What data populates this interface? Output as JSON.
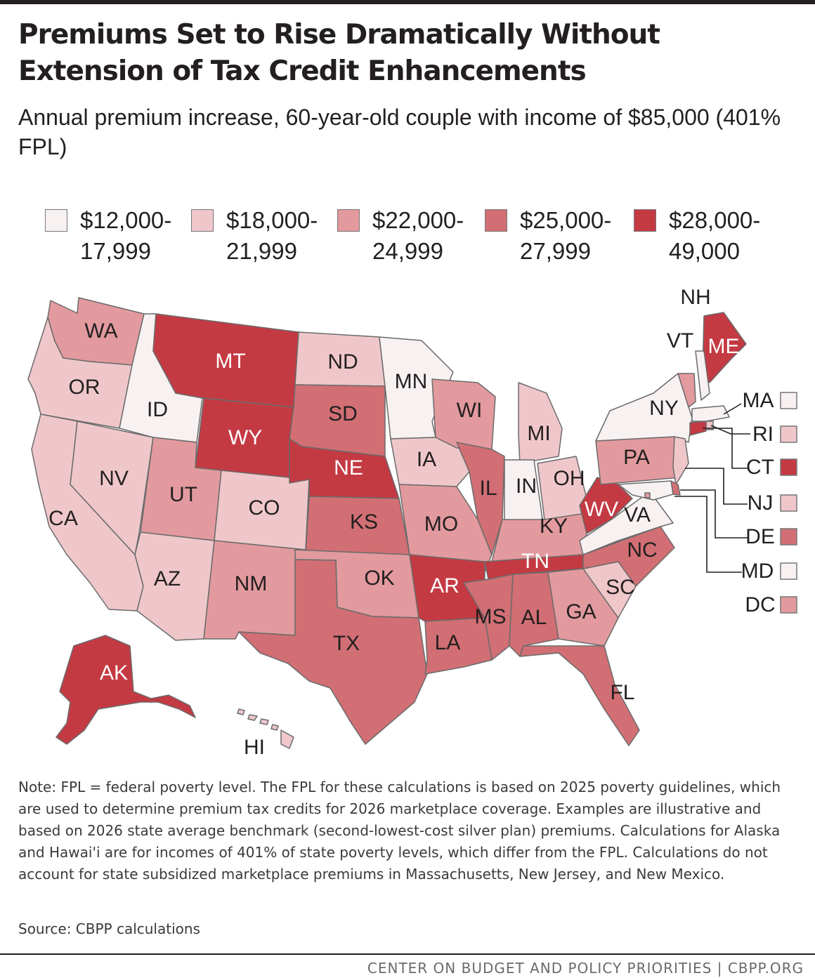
{
  "header": {
    "title": "Premiums Set to Rise Dramatically Without Extension of Tax Credit Enhancements",
    "subtitle": "Annual premium increase, 60-year-old couple with income of $85,000 (401% FPL)"
  },
  "legend": [
    {
      "label_line1": "$12,000-",
      "label_line2": "17,999",
      "color": "#f8f1f1"
    },
    {
      "label_line1": "$18,000-",
      "label_line2": "21,999",
      "color": "#efc7cb"
    },
    {
      "label_line1": "$22,000-",
      "label_line2": "24,999",
      "color": "#e29a9e"
    },
    {
      "label_line1": "$25,000-",
      "label_line2": "27,999",
      "color": "#d16f74"
    },
    {
      "label_line1": "$28,000-",
      "label_line2": "49,000",
      "color": "#c43a43"
    }
  ],
  "chart_data": {
    "type": "choropleth",
    "bins": [
      "$12,000-17,999",
      "$18,000-21,999",
      "$22,000-24,999",
      "$25,000-27,999",
      "$28,000-49,000"
    ],
    "states": {
      "WA": 2,
      "OR": 1,
      "CA": 1,
      "NV": 1,
      "ID": 0,
      "MT": 4,
      "WY": 4,
      "UT": 2,
      "AZ": 1,
      "CO": 1,
      "NM": 2,
      "ND": 1,
      "SD": 3,
      "NE": 4,
      "KS": 3,
      "OK": 2,
      "TX": 3,
      "MN": 0,
      "IA": 1,
      "MO": 2,
      "AR": 4,
      "LA": 3,
      "WI": 2,
      "IL": 3,
      "MS": 3,
      "MI": 1,
      "IN": 0,
      "OH": 1,
      "KY": 2,
      "TN": 4,
      "AL": 3,
      "GA": 2,
      "FL": 3,
      "SC": 1,
      "NC": 3,
      "VA": 0,
      "WV": 4,
      "PA": 2,
      "NY": 0,
      "ME": 4,
      "NH": 0,
      "VT": 2,
      "MA": 0,
      "RI": 1,
      "CT": 4,
      "NJ": 1,
      "DE": 3,
      "MD": 0,
      "DC": 2,
      "AK": 4,
      "HI": 1
    }
  },
  "note": "Note: FPL = federal poverty level. The FPL for these calculations is based on 2025 poverty guidelines, which are used to determine premium tax credits for 2026 marketplace coverage. Examples are illustrative and based on 2026 state average benchmark (second-lowest-cost silver plan) premiums. Calculations for Alaska and Hawai'i are for incomes of 401% of state poverty levels, which differ from the FPL. Calculations do not account for state subsidized marketplace premiums in Massachusetts, New Jersey, and New Mexico.",
  "source": "Source: CBPP calculations",
  "footer": "CENTER ON BUDGET AND POLICY PRIORITIES | CBPP.ORG"
}
